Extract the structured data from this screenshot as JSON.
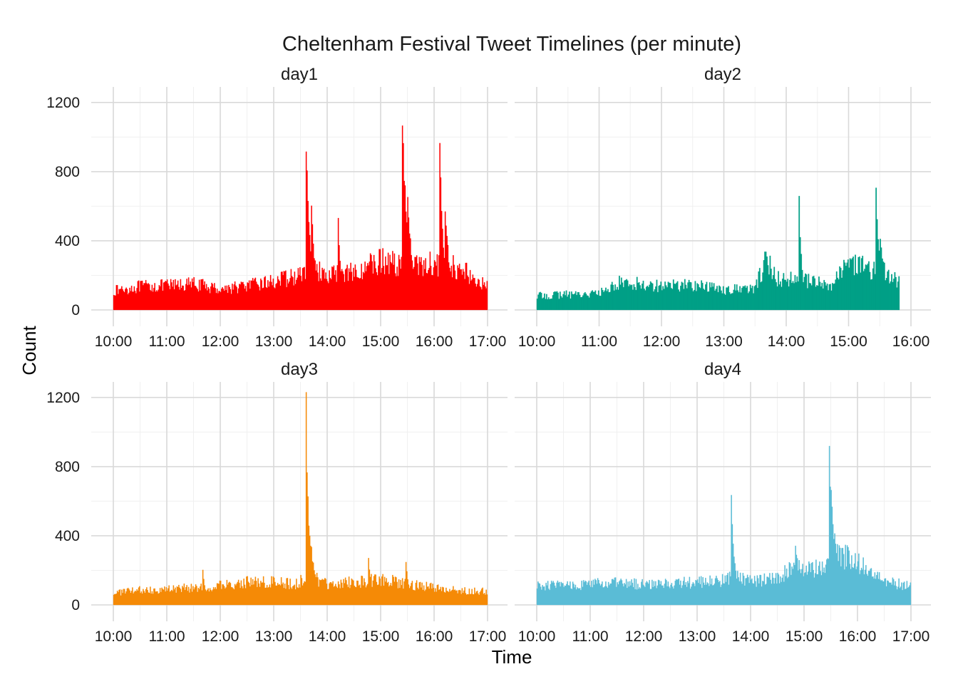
{
  "chart_data": {
    "type": "bar",
    "title": "Cheltenham Festival Tweet Timelines (per minute)",
    "xlabel": "Time",
    "ylabel": "Count",
    "y_ticks": [
      "0",
      "400",
      "800",
      "1200"
    ],
    "y_tick_values": [
      0,
      400,
      800,
      1200
    ],
    "ylim": [
      0,
      1290
    ],
    "grid": true,
    "legend": "none",
    "panels": [
      {
        "name": "day1",
        "color": "#ff0000",
        "x_ticks": [
          "10:00",
          "11:00",
          "12:00",
          "13:00",
          "14:00",
          "15:00",
          "16:00",
          "17:00"
        ],
        "xlim": [
          "10:00",
          "17:00"
        ],
        "data_end": "17:00",
        "baseline": [
          [
            0,
            110
          ],
          [
            30,
            135
          ],
          [
            60,
            140
          ],
          [
            90,
            150
          ],
          [
            120,
            120
          ],
          [
            150,
            140
          ],
          [
            180,
            165
          ],
          [
            210,
            200
          ],
          [
            220,
            240
          ],
          [
            240,
            210
          ],
          [
            270,
            220
          ],
          [
            300,
            280
          ],
          [
            330,
            260
          ],
          [
            360,
            270
          ],
          [
            390,
            240
          ],
          [
            420,
            130
          ]
        ],
        "spikes": [
          [
            216,
            1000,
            5
          ],
          [
            222,
            640,
            4
          ],
          [
            252,
            580,
            3
          ],
          [
            324,
            1195,
            6
          ],
          [
            330,
            720,
            6
          ],
          [
            348,
            300,
            4
          ],
          [
            366,
            1095,
            4
          ],
          [
            372,
            620,
            6
          ]
        ]
      },
      {
        "name": "day2",
        "color": "#00a087",
        "x_ticks": [
          "10:00",
          "11:00",
          "12:00",
          "13:00",
          "14:00",
          "15:00",
          "16:00"
        ],
        "xlim": [
          "10:00",
          "16:00"
        ],
        "data_end": "15:49",
        "baseline": [
          [
            0,
            80
          ],
          [
            30,
            90
          ],
          [
            60,
            95
          ],
          [
            80,
            160
          ],
          [
            120,
            140
          ],
          [
            150,
            145
          ],
          [
            180,
            120
          ],
          [
            210,
            120
          ],
          [
            220,
            300
          ],
          [
            230,
            180
          ],
          [
            270,
            160
          ],
          [
            280,
            130
          ],
          [
            300,
            260
          ],
          [
            330,
            230
          ],
          [
            345,
            180
          ],
          [
            349,
            150
          ]
        ],
        "spikes": [
          [
            218,
            330,
            5
          ],
          [
            252,
            660,
            3
          ],
          [
            302,
            300,
            3
          ],
          [
            312,
            310,
            3
          ],
          [
            326,
            755,
            4
          ],
          [
            330,
            460,
            6
          ]
        ]
      },
      {
        "name": "day3",
        "color": "#f58a07",
        "x_ticks": [
          "10:00",
          "11:00",
          "12:00",
          "13:00",
          "14:00",
          "15:00",
          "16:00",
          "17:00"
        ],
        "xlim": [
          "10:00",
          "17:00"
        ],
        "data_end": "17:00",
        "baseline": [
          [
            0,
            70
          ],
          [
            30,
            85
          ],
          [
            60,
            90
          ],
          [
            90,
            100
          ],
          [
            120,
            110
          ],
          [
            150,
            130
          ],
          [
            180,
            130
          ],
          [
            205,
            120
          ],
          [
            220,
            170
          ],
          [
            240,
            120
          ],
          [
            270,
            130
          ],
          [
            300,
            150
          ],
          [
            330,
            120
          ],
          [
            360,
            100
          ],
          [
            390,
            80
          ],
          [
            420,
            80
          ]
        ],
        "spikes": [
          [
            100,
            230,
            3
          ],
          [
            216,
            1235,
            3
          ],
          [
            217,
            850,
            4
          ],
          [
            220,
            450,
            7
          ],
          [
            286,
            300,
            4
          ],
          [
            328,
            250,
            4
          ]
        ]
      },
      {
        "name": "day4",
        "color": "#5bbcd6",
        "x_ticks": [
          "10:00",
          "11:00",
          "12:00",
          "13:00",
          "14:00",
          "15:00",
          "16:00",
          "17:00"
        ],
        "xlim": [
          "10:00",
          "17:00"
        ],
        "data_end": "17:00",
        "baseline": [
          [
            0,
            110
          ],
          [
            30,
            115
          ],
          [
            60,
            120
          ],
          [
            90,
            125
          ],
          [
            120,
            120
          ],
          [
            150,
            125
          ],
          [
            180,
            130
          ],
          [
            210,
            140
          ],
          [
            220,
            160
          ],
          [
            240,
            140
          ],
          [
            270,
            150
          ],
          [
            290,
            230
          ],
          [
            320,
            200
          ],
          [
            330,
            300
          ],
          [
            360,
            250
          ],
          [
            390,
            130
          ],
          [
            420,
            110
          ]
        ],
        "spikes": [
          [
            218,
            680,
            3
          ],
          [
            220,
            380,
            5
          ],
          [
            290,
            360,
            3
          ],
          [
            328,
            980,
            3
          ],
          [
            330,
            720,
            5
          ],
          [
            334,
            420,
            8
          ]
        ]
      }
    ]
  }
}
